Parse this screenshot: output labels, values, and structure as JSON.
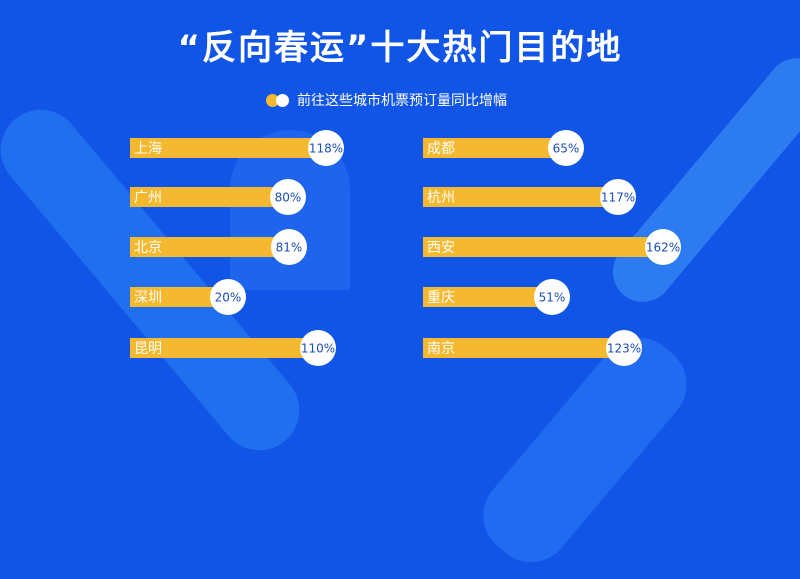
{
  "title": "“反向春运”十大热门目的地",
  "chart_data": {
    "type": "bar",
    "title": "“反向春运”十大热门目的地",
    "series": [
      {
        "name": "前往这些城市机票预订量同比增幅",
        "unit": "%",
        "color_bar": "#f5b931",
        "color_bubble": "#ffffff"
      }
    ],
    "columns": [
      {
        "categories": [
          "上海",
          "广州",
          "北京",
          "深圳",
          "昆明"
        ],
        "values": [
          118,
          80,
          81,
          20,
          110
        ],
        "labels": [
          "118%",
          "80%",
          "81%",
          "20%",
          "110%"
        ]
      },
      {
        "categories": [
          "成都",
          "杭州",
          "西安",
          "重庆",
          "南京"
        ],
        "values": [
          65,
          117,
          162,
          51,
          123
        ],
        "labels": [
          "65%",
          "117%",
          "162%",
          "51%",
          "123%"
        ]
      }
    ]
  },
  "colors": {
    "background": "#1155e6",
    "title": "#ffffff",
    "bar": "#f5b931",
    "bubble": "#ffffff",
    "bubble_text": "#1a4fb8",
    "city_text": "#ffffff"
  }
}
